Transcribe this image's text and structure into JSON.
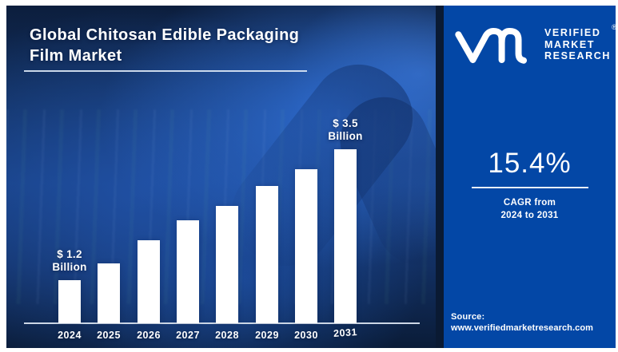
{
  "title": {
    "line1": "Global Chitosan Edible Packaging",
    "line2": "Film Market"
  },
  "brand": {
    "name_lines": [
      "VERIFIED",
      "MARKET",
      "RESEARCH"
    ],
    "registered_mark": "®",
    "monogram_icon": "vm-monogram"
  },
  "stats": {
    "cagr_value": "15.4%",
    "cagr_caption_line1": "CAGR from",
    "cagr_caption_line2": "2024 to 2031"
  },
  "source": {
    "label": "Source:",
    "url": "www.verifiedmarketresearch.com"
  },
  "chart_data": {
    "type": "bar",
    "title": "Global Chitosan Edible Packaging Film Market",
    "categories": [
      "2024",
      "2025",
      "2026",
      "2027",
      "2028",
      "2029",
      "2030",
      "2031"
    ],
    "values": [
      1.2,
      1.5,
      1.9,
      2.25,
      2.5,
      2.85,
      3.15,
      3.5
    ],
    "unit": "USD Billion",
    "labeled_points": [
      {
        "category": "2024",
        "line1": "$ 1.2",
        "line2": "Billion"
      },
      {
        "category": "2031",
        "line1": "$ 3.5",
        "line2": "Billion"
      }
    ],
    "bar_color": "#ffffff",
    "grid": false,
    "legend": false,
    "note": "only first and last bars carry value labels; intermediate values estimated from bar heights"
  },
  "colors": {
    "page_margin": "#ffffff",
    "canvas_navy": "#0a1a33",
    "photo_highlight_blue": "#2f6ed5",
    "brand_panel_blue": "#0347a6",
    "axis_line": "#ccd7e6",
    "text": "#ffffff"
  }
}
